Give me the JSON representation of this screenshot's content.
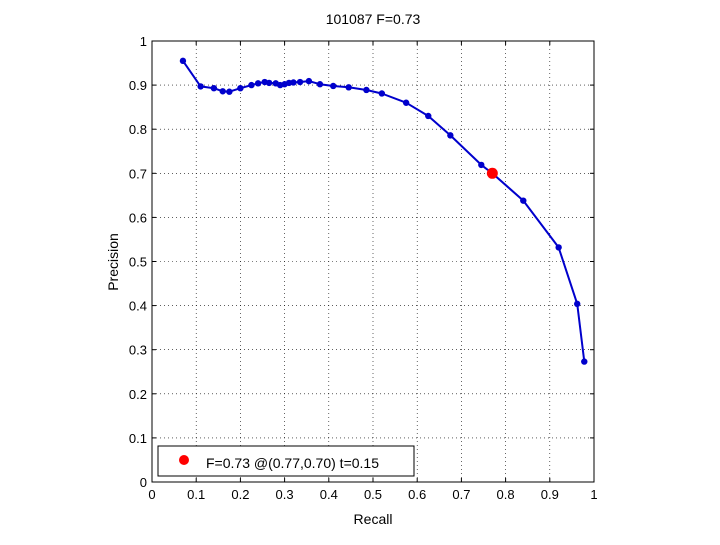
{
  "chart_data": {
    "type": "line",
    "title": "101087 F=0.73",
    "xlabel": "Recall",
    "ylabel": "Precision",
    "xlim": [
      0,
      1
    ],
    "ylim": [
      0,
      1
    ],
    "grid": true,
    "x_ticks": [
      "0",
      "0.1",
      "0.2",
      "0.3",
      "0.4",
      "0.5",
      "0.6",
      "0.7",
      "0.8",
      "0.9",
      "1"
    ],
    "y_ticks": [
      "0",
      "0.1",
      "0.2",
      "0.3",
      "0.4",
      "0.5",
      "0.6",
      "0.7",
      "0.8",
      "0.9",
      "1"
    ],
    "series": [
      {
        "color": "#0000cc",
        "marker": "dot",
        "points": [
          [
            0.07,
            0.955
          ],
          [
            0.11,
            0.897
          ],
          [
            0.14,
            0.893
          ],
          [
            0.16,
            0.886
          ],
          [
            0.175,
            0.885
          ],
          [
            0.2,
            0.893
          ],
          [
            0.225,
            0.9
          ],
          [
            0.24,
            0.904
          ],
          [
            0.255,
            0.907
          ],
          [
            0.265,
            0.905
          ],
          [
            0.28,
            0.904
          ],
          [
            0.29,
            0.9
          ],
          [
            0.3,
            0.902
          ],
          [
            0.31,
            0.905
          ],
          [
            0.32,
            0.906
          ],
          [
            0.335,
            0.907
          ],
          [
            0.355,
            0.909
          ],
          [
            0.38,
            0.902
          ],
          [
            0.41,
            0.898
          ],
          [
            0.445,
            0.895
          ],
          [
            0.485,
            0.889
          ],
          [
            0.52,
            0.881
          ],
          [
            0.575,
            0.86
          ],
          [
            0.625,
            0.83
          ],
          [
            0.675,
            0.786
          ],
          [
            0.745,
            0.719
          ],
          [
            0.77,
            0.7
          ],
          [
            0.84,
            0.638
          ],
          [
            0.92,
            0.532
          ],
          [
            0.962,
            0.404
          ],
          [
            0.978,
            0.273
          ]
        ]
      }
    ],
    "highlight": {
      "x": 0.77,
      "y": 0.7,
      "color": "#ff0000"
    },
    "legend": {
      "position": "bottom-left",
      "label": "F=0.73 @(0.77,0.70) t=0.15",
      "marker_color": "#ff0000"
    }
  }
}
